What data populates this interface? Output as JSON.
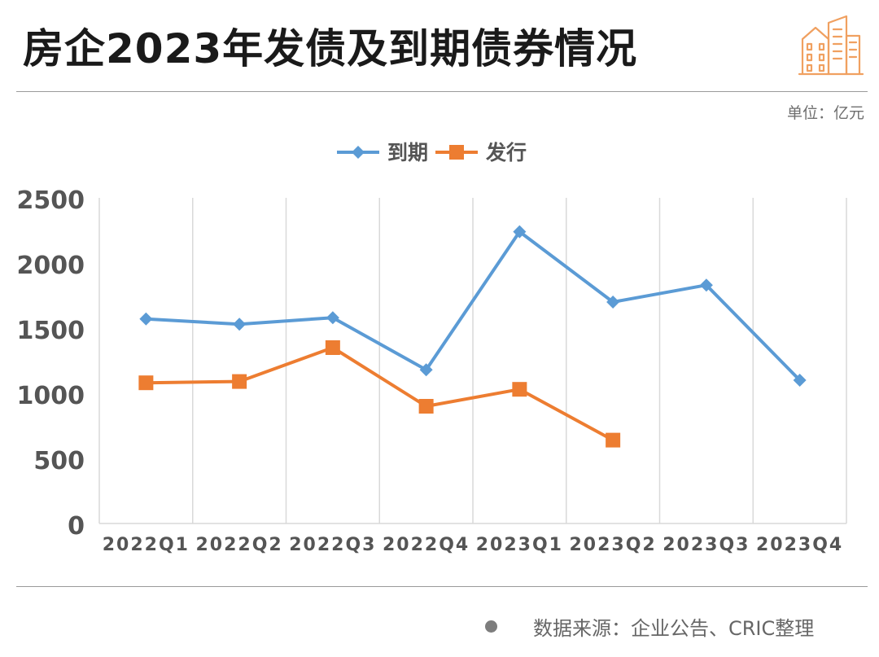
{
  "header": {
    "title": "房企2023年发债及到期债券情况",
    "unit": "单位：亿元"
  },
  "footer": {
    "source": "数据来源：企业公告、CRIC整理"
  },
  "logo": {
    "icon": "city-buildings-icon",
    "color": "#f0a060"
  },
  "chart_data": {
    "type": "line",
    "categories": [
      "2022Q1",
      "2022Q2",
      "2022Q3",
      "2022Q4",
      "2023Q1",
      "2023Q2",
      "2023Q3",
      "2023Q4"
    ],
    "series": [
      {
        "name": "到期",
        "color": "#5b9bd5",
        "marker": "diamond",
        "values": [
          1570,
          1530,
          1580,
          1180,
          2240,
          1700,
          1830,
          1100
        ]
      },
      {
        "name": "发行",
        "color": "#ed7d31",
        "marker": "square",
        "values": [
          1080,
          1090,
          1350,
          900,
          1030,
          640,
          null,
          null
        ]
      }
    ],
    "yticks": [
      0,
      500,
      1000,
      1500,
      2000,
      2500
    ],
    "ylim": [
      0,
      2500
    ],
    "grid": "vertical",
    "legend": "top"
  }
}
